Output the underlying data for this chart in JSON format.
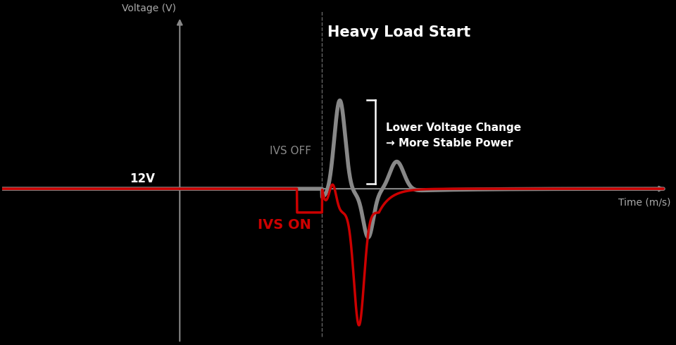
{
  "background_color": "#000000",
  "title": "Heavy Load Start",
  "title_color": "#ffffff",
  "title_fontsize": 15,
  "xlabel": "Time (m/s)",
  "ylabel": "Voltage (V)",
  "axis_color": "#888888",
  "label_12v": "12V",
  "label_ivs_off": "IVS OFF",
  "label_ivs_on": "IVS ON",
  "annotation_line1": "Lower Voltage Change",
  "annotation_line2": "→ More Stable Power",
  "annotation_color": "#ffffff",
  "ivs_off_color": "#888888",
  "ivs_on_color": "#cc0000",
  "dashed_line_color": "#aaaaaa",
  "bracket_color": "#ffffff",
  "axis_arrow_color": "#888888"
}
